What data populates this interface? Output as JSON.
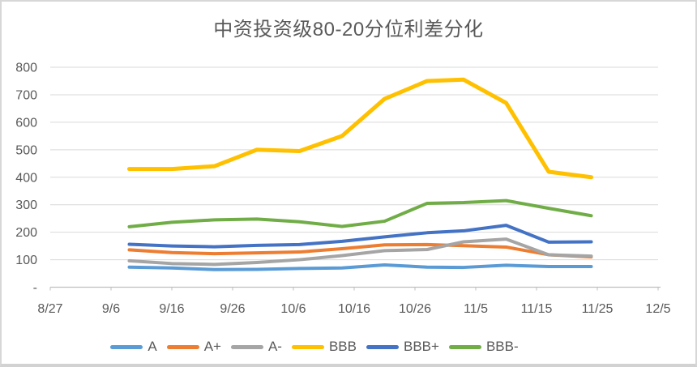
{
  "chart_data": {
    "type": "line",
    "title": "中资投资级80-20分位利差分化",
    "xlabel": "",
    "ylabel": "",
    "ylim": [
      0,
      800
    ],
    "y_step": 100,
    "grid": "horizontal",
    "legend_position": "bottom",
    "x_axis_tick_labels": [
      "8/27",
      "9/6",
      "9/16",
      "9/26",
      "10/6",
      "10/16",
      "10/26",
      "11/5",
      "11/15",
      "11/25",
      "12/5"
    ],
    "y_axis_tick_labels": [
      "-",
      "100",
      "200",
      "300",
      "400",
      "500",
      "600",
      "700",
      "800"
    ],
    "x": [
      "9/9",
      "9/16",
      "9/23",
      "9/30",
      "10/7",
      "10/14",
      "10/21",
      "10/28",
      "11/4",
      "11/11",
      "11/18",
      "11/25"
    ],
    "series": [
      {
        "name": "A",
        "color": "#5B9BD5",
        "values": [
          73,
          70,
          64,
          65,
          68,
          70,
          81,
          73,
          72,
          80,
          75,
          75
        ]
      },
      {
        "name": "A+",
        "color": "#ED7D31",
        "values": [
          136,
          126,
          122,
          125,
          128,
          140,
          154,
          155,
          151,
          146,
          118,
          110
        ]
      },
      {
        "name": "A-",
        "color": "#A5A5A5",
        "values": [
          96,
          86,
          83,
          90,
          100,
          115,
          133,
          137,
          165,
          175,
          118,
          113
        ]
      },
      {
        "name": "BBB",
        "color": "#FFC000",
        "values": [
          430,
          430,
          440,
          500,
          495,
          550,
          685,
          750,
          755,
          670,
          420,
          400
        ]
      },
      {
        "name": "BBB+",
        "color": "#4472C4",
        "values": [
          156,
          150,
          147,
          152,
          155,
          167,
          183,
          198,
          205,
          225,
          164,
          165
        ]
      },
      {
        "name": "BBB-",
        "color": "#70AD47",
        "values": [
          220,
          236,
          245,
          248,
          238,
          221,
          240,
          305,
          308,
          315,
          287,
          260
        ]
      }
    ]
  },
  "colors": {
    "text": "#595959",
    "gridline": "#D9D9D9",
    "axis": "#BFBFBF",
    "background": "#FFFFFF"
  }
}
